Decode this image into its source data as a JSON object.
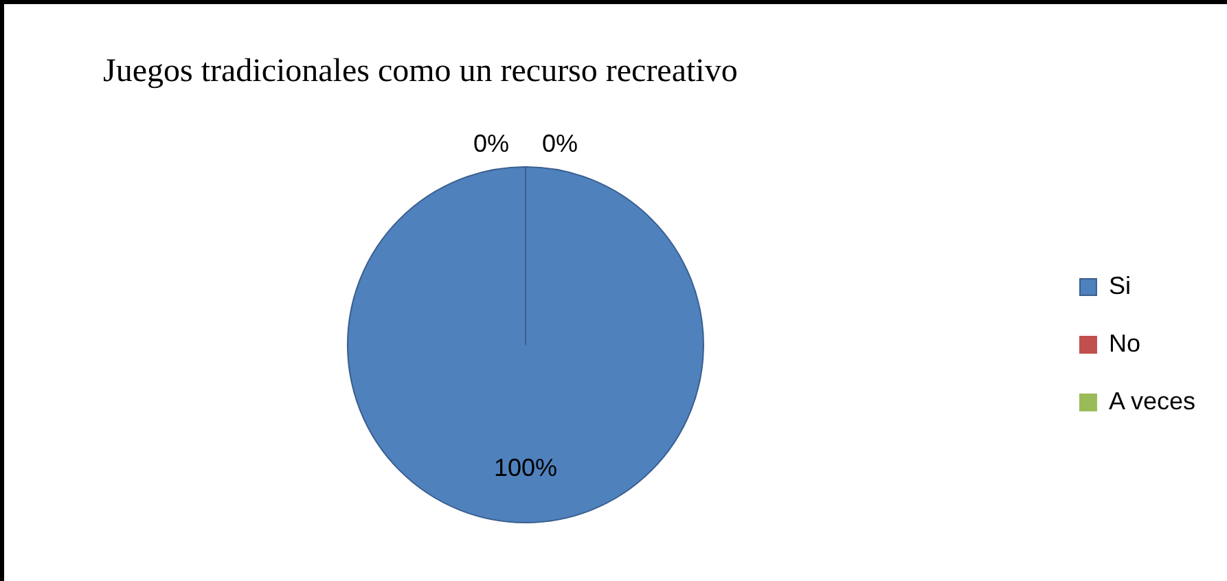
{
  "chart_data": {
    "type": "pie",
    "title": "Juegos tradicionales como un recurso recreativo",
    "categories": [
      "Si",
      "No",
      "A veces"
    ],
    "values": [
      100,
      0,
      0
    ],
    "colors": [
      "#4f81bd",
      "#c0504d",
      "#9bbb59"
    ],
    "value_labels": [
      "100%",
      "0%",
      "0%"
    ],
    "legend": "right"
  }
}
